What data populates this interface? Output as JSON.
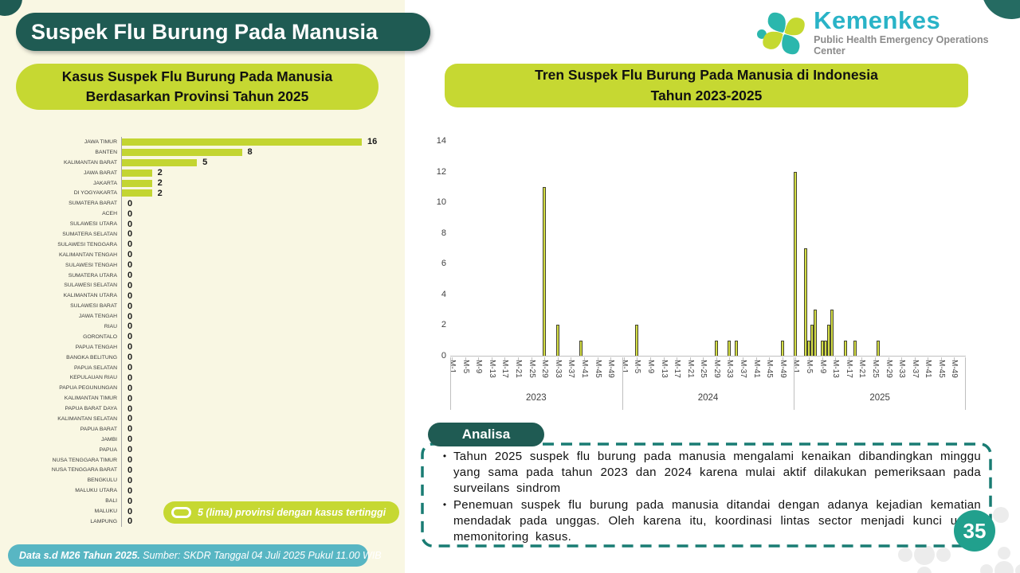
{
  "page": {
    "title": "Suspek Flu Burung Pada Manusia",
    "page_number": "35"
  },
  "logo": {
    "brand": "Kemenkes",
    "subtitle": "Public Health Emergency Operations Center"
  },
  "left_chart": {
    "title_line1": "Kasus Suspek Flu Burung Pada Manusia",
    "title_line2": "Berdasarkan Provinsi Tahun 2025"
  },
  "right_chart": {
    "title_line1": "Tren Suspek Flu Burung Pada Manusia di Indonesia",
    "title_line2": "Tahun 2023-2025"
  },
  "badge": {
    "label": "5 (lima) provinsi dengan kasus tertinggi"
  },
  "footer": {
    "bold": "Data s.d M26 Tahun 2025.",
    "rest": " Sumber: SKDR Tanggal 04 Juli 2025 Pukul 11.00 WIB"
  },
  "analysis": {
    "header": "Analisa",
    "bullets": [
      "Tahun 2025 suspek flu burung pada manusia mengalami kenaikan dibandingkan minggu yang sama pada tahun 2023 dan 2024 karena mulai aktif dilakukan pemeriksaan pada surveilans sindrom",
      "Penemuan suspek flu burung pada manusia ditandai dengan adanya kejadian kematian mendadak pada unggas. Oleh karena itu, koordinasi lintas sector menjadi kunci untuk memonitoring kasus."
    ]
  },
  "colors": {
    "dark_teal": "#1f5b53",
    "lime": "#c6d832",
    "footer_teal": "#58b6c3",
    "page_circle_teal": "#21a08d",
    "dashed_border_teal": "#197c73",
    "cream_background": "#f9f7e3",
    "bar_lime": "#c3d531"
  },
  "chart_data": [
    {
      "type": "bar",
      "orientation": "horizontal",
      "title": "Kasus Suspek Flu Burung Pada Manusia Berdasarkan Provinsi Tahun 2025",
      "xlim": [
        0,
        16
      ],
      "categories": [
        "JAWA TIMUR",
        "BANTEN",
        "KALIMANTAN BARAT",
        "JAWA BARAT",
        "JAKARTA",
        "DI YOGYAKARTA",
        "SUMATERA BARAT",
        "ACEH",
        "SULAWESI UTARA",
        "SUMATERA SELATAN",
        "SULAWESI TENGGARA",
        "KALIMANTAN TENGAH",
        "SULAWESI TENGAH",
        "SUMATERA UTARA",
        "SULAWESI SELATAN",
        "KALIMANTAN UTARA",
        "SULAWESI BARAT",
        "JAWA TENGAH",
        "RIAU",
        "GORONTALO",
        "PAPUA TENGAH",
        "BANGKA BELITUNG",
        "PAPUA SELATAN",
        "KEPULAUAN RIAU",
        "PAPUA PEGUNUNGAN",
        "KALIMANTAN TIMUR",
        "PAPUA BARAT DAYA",
        "KALIMANTAN SELATAN",
        "PAPUA BARAT",
        "JAMBI",
        "PAPUA",
        "NUSA TENGGARA TIMUR",
        "NUSA TENGGARA BARAT",
        "BENGKULU",
        "MALUKU UTARA",
        "BALI",
        "MALUKU",
        "LAMPUNG"
      ],
      "values": [
        16,
        8,
        5,
        2,
        2,
        2,
        0,
        0,
        0,
        0,
        0,
        0,
        0,
        0,
        0,
        0,
        0,
        0,
        0,
        0,
        0,
        0,
        0,
        0,
        0,
        0,
        0,
        0,
        0,
        0,
        0,
        0,
        0,
        0,
        0,
        0,
        0,
        0
      ]
    },
    {
      "type": "bar",
      "title": "Tren Suspek Flu Burung Pada Manusia di Indonesia Tahun 2023-2025",
      "x_unit": "epidemiological week (M-n)",
      "years": [
        "2023",
        "2024",
        "2025"
      ],
      "weeks_per_year": 52,
      "tick_labels": [
        "M-1",
        "M-5",
        "M-9",
        "M-13",
        "M-17",
        "M-21",
        "M-25",
        "M-29",
        "M-33",
        "M-37",
        "M-41",
        "M-45",
        "M-49"
      ],
      "ylim": [
        0,
        14
      ],
      "y_ticks": [
        0,
        2,
        4,
        6,
        8,
        10,
        12,
        14
      ],
      "grid": false,
      "legend": false,
      "points": [
        {
          "year": "2023",
          "week": 29,
          "value": 11
        },
        {
          "year": "2023",
          "week": 33,
          "value": 2
        },
        {
          "year": "2023",
          "week": 40,
          "value": 1
        },
        {
          "year": "2024",
          "week": 5,
          "value": 2
        },
        {
          "year": "2024",
          "week": 29,
          "value": 1
        },
        {
          "year": "2024",
          "week": 33,
          "value": 1
        },
        {
          "year": "2024",
          "week": 35,
          "value": 1
        },
        {
          "year": "2024",
          "week": 49,
          "value": 1
        },
        {
          "year": "2025",
          "week": 1,
          "value": 12
        },
        {
          "year": "2025",
          "week": 4,
          "value": 7
        },
        {
          "year": "2025",
          "week": 5,
          "value": 1
        },
        {
          "year": "2025",
          "week": 6,
          "value": 2
        },
        {
          "year": "2025",
          "week": 7,
          "value": 3
        },
        {
          "year": "2025",
          "week": 9,
          "value": 1
        },
        {
          "year": "2025",
          "week": 10,
          "value": 1
        },
        {
          "year": "2025",
          "week": 11,
          "value": 2
        },
        {
          "year": "2025",
          "week": 12,
          "value": 3
        },
        {
          "year": "2025",
          "week": 16,
          "value": 1
        },
        {
          "year": "2025",
          "week": 19,
          "value": 1
        },
        {
          "year": "2025",
          "week": 26,
          "value": 1
        }
      ]
    }
  ]
}
